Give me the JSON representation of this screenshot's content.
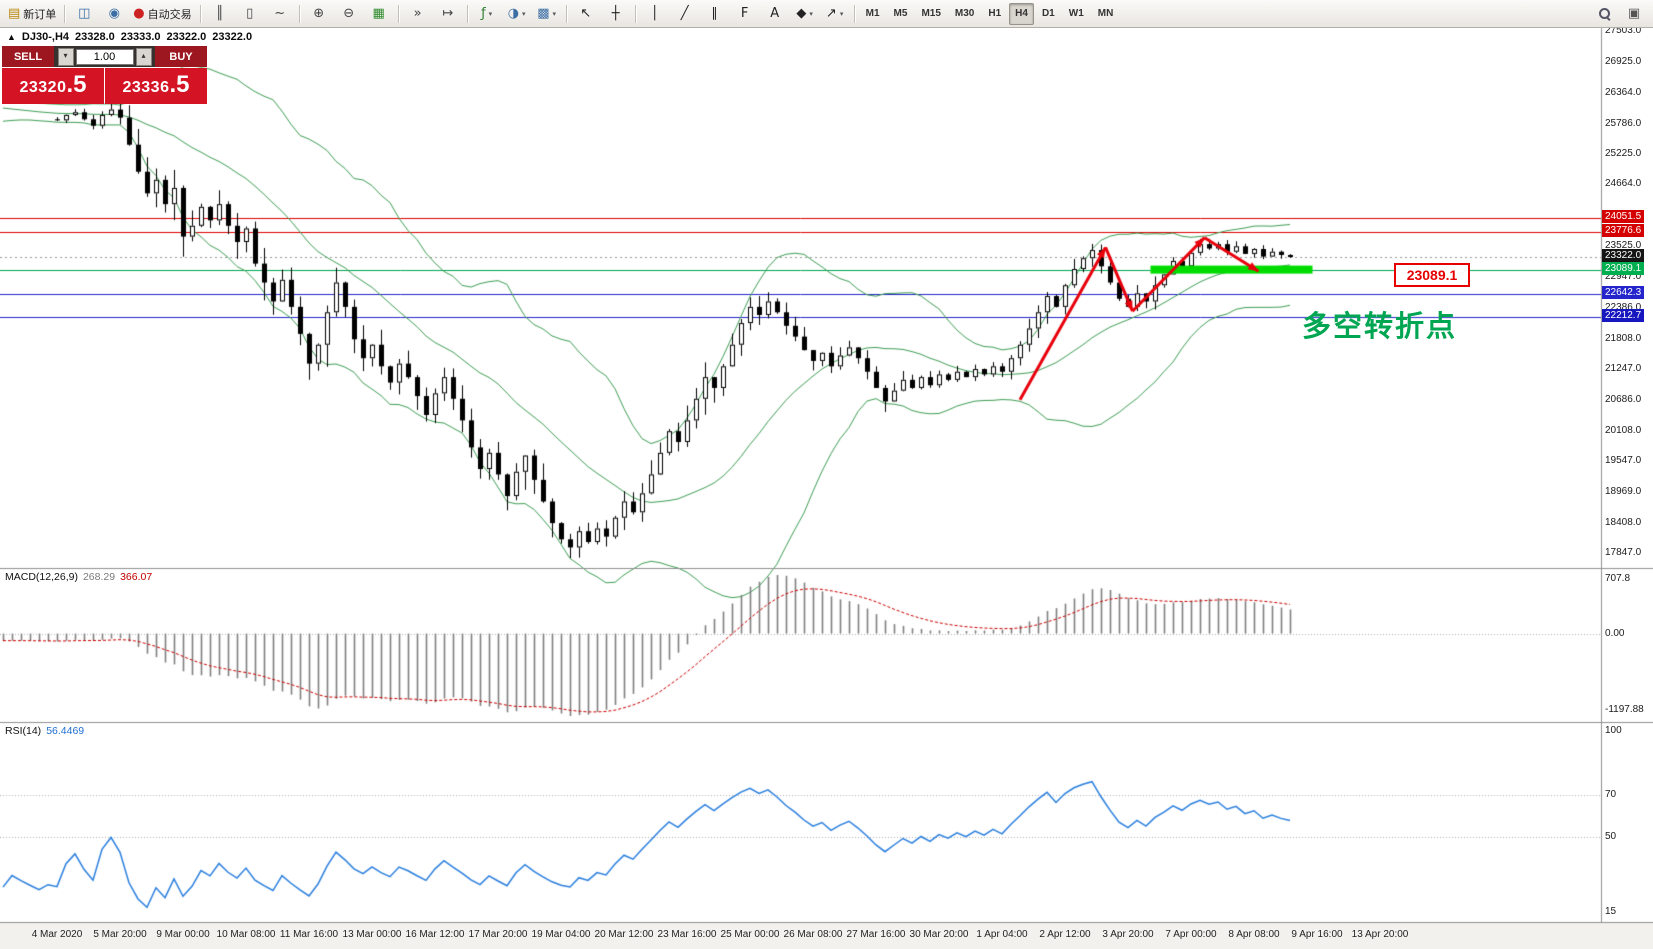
{
  "toolbar": {
    "caret_glyph": "▾",
    "active_timeframe": "H4",
    "timeframes": [
      "M1",
      "M5",
      "M15",
      "M30",
      "H1",
      "H4",
      "D1",
      "W1",
      "MN"
    ],
    "groups": [
      {
        "items": [
          {
            "name": "new-order",
            "glyph": "▤",
            "color": "#b8860b",
            "label": "新订单"
          }
        ]
      },
      {
        "items": [
          {
            "name": "charts-window",
            "glyph": "◫",
            "color": "#3a6ea5"
          },
          {
            "name": "market-watch",
            "glyph": "◉",
            "color": "#3a6ea5"
          },
          {
            "name": "auto-trading",
            "glyph": "●",
            "color": "#cc2222",
            "label": "自动交易"
          }
        ]
      },
      {
        "items": [
          {
            "name": "bar-chart",
            "glyph": "║",
            "color": "#444444"
          },
          {
            "name": "candlestick-chart",
            "glyph": "▯",
            "color": "#444444"
          },
          {
            "name": "line-chart",
            "glyph": "~",
            "color": "#444444"
          }
        ]
      },
      {
        "items": [
          {
            "name": "zoom-in",
            "glyph": "⊕",
            "color": "#444444"
          },
          {
            "name": "zoom-out",
            "glyph": "⊖",
            "color": "#444444"
          },
          {
            "name": "tile-windows",
            "glyph": "▦",
            "color": "#2e8b2e"
          }
        ]
      },
      {
        "items": [
          {
            "name": "auto-scroll",
            "glyph": "»",
            "color": "#444444"
          },
          {
            "name": "chart-shift",
            "glyph": "↦",
            "color": "#444444"
          }
        ]
      },
      {
        "items": [
          {
            "name": "indicators-list",
            "glyph": "ƒ",
            "color": "#2e7d32",
            "caret": true
          },
          {
            "name": "periods-list",
            "glyph": "◑",
            "color": "#3a6ea5",
            "caret": true
          },
          {
            "name": "templates",
            "glyph": "▩",
            "color": "#3a6ea5",
            "caret": true
          }
        ]
      },
      {
        "items": [
          {
            "name": "cursor",
            "glyph": "↖",
            "color": "#222222"
          },
          {
            "name": "crosshair",
            "glyph": "┼",
            "color": "#222222"
          }
        ]
      },
      {
        "items": [
          {
            "name": "vertical-line",
            "glyph": "│",
            "color": "#222222"
          },
          {
            "name": "trendline",
            "glyph": "╱",
            "color": "#222222"
          },
          {
            "name": "equidistant-channel",
            "glyph": "∥",
            "color": "#222222"
          },
          {
            "name": "fibonacci",
            "glyph": "F",
            "color": "#222222"
          },
          {
            "name": "text-label",
            "glyph": "A",
            "color": "#222222"
          },
          {
            "name": "shapes",
            "glyph": "◆",
            "color": "#222222",
            "caret": true
          },
          {
            "name": "arrows",
            "glyph": "↗",
            "color": "#222222",
            "caret": true
          }
        ]
      }
    ],
    "right_icons": [
      {
        "name": "search",
        "glyph": "css-magnifier"
      },
      {
        "name": "layouts",
        "glyph": "▣",
        "color": "#555555"
      }
    ]
  },
  "symbol_header": {
    "collapse_glyph": "▲",
    "symbol": "DJ30-,H4",
    "open": "23328.0",
    "high": "23333.0",
    "low": "23322.0",
    "close": "23322.0"
  },
  "trade_panel": {
    "sell_label": "SELL",
    "buy_label": "BUY",
    "volume": "1.00",
    "spin_down_glyph": "▾",
    "spin_up_glyph": "▴",
    "sell_main": "23320",
    "sell_frac": ".5",
    "buy_main": "23336",
    "buy_frac": ".5"
  },
  "annotations": {
    "price_callout": {
      "text": "23089.1",
      "color": "#e60000"
    },
    "cn_note": {
      "text": "多空转折点",
      "color": "#00a651"
    },
    "highlight_bar": {
      "from_index": 121.5,
      "to_index": 139.5,
      "price": 23089.1,
      "color": "#00dc00",
      "thickness": 8
    },
    "trend_arrows": {
      "color": "#e8000b",
      "segments": [
        [
          107,
          20680,
          116.5,
          23500
        ],
        [
          116.5,
          23500,
          119.5,
          22320
        ],
        [
          119.5,
          22320,
          127.5,
          23680
        ],
        [
          127.5,
          23680,
          133.5,
          23060
        ]
      ]
    }
  },
  "chart_data": {
    "type": "candlestick",
    "symbol": "DJ30-",
    "timeframe": "H4",
    "last_price": 23322.0,
    "colors": {
      "bull": "#ffffff",
      "bear": "#000000",
      "band": "#3f9e54",
      "macd_hist": "#808080",
      "macd_signal": "#cc0000",
      "rsi_line": "#2a7fde",
      "grid": "#b0b0b0"
    },
    "price_ticks": [
      27503.0,
      26925.0,
      26364.0,
      25786.0,
      25225.0,
      24664.0,
      24086.0,
      23525.0,
      22947.0,
      22386.0,
      21808.0,
      21247.0,
      20686.0,
      20108.0,
      19547.0,
      18969.0,
      18408.0,
      17847.0
    ],
    "x_labels": [
      "4 Mar 2020",
      "5 Mar 20:00",
      "9 Mar 00:00",
      "10 Mar 08:00",
      "11 Mar 16:00",
      "13 Mar 00:00",
      "16 Mar 12:00",
      "17 Mar 20:00",
      "19 Mar 04:00",
      "20 Mar 12:00",
      "23 Mar 16:00",
      "25 Mar 00:00",
      "26 Mar 08:00",
      "27 Mar 16:00",
      "30 Mar 20:00",
      "1 Apr 04:00",
      "2 Apr 12:00",
      "3 Apr 20:00",
      "7 Apr 00:00",
      "8 Apr 08:00",
      "9 Apr 16:00",
      "13 Apr 20:00"
    ],
    "levels": [
      {
        "price": 24051.5,
        "label": "24051.5",
        "color": "#e00000",
        "label_bg": "#d40000",
        "style": "solid"
      },
      {
        "price": 23776.6,
        "label": "23776.6",
        "color": "#e00000",
        "label_bg": "#d40000",
        "style": "solid"
      },
      {
        "price": 23322.0,
        "label": "23322.0",
        "color": "#9a9a9a",
        "label_bg": "#151515",
        "style": "dot"
      },
      {
        "price": 23089.1,
        "label": "23089.1",
        "color": "#00a651",
        "label_bg": "#00b050",
        "style": "solid"
      },
      {
        "price": 22642.3,
        "label": "22642.3",
        "color": "#2525cc",
        "label_bg": "#2525cc",
        "style": "solid"
      },
      {
        "price": 22212.7,
        "label": "22212.7",
        "color": "#2525cc",
        "label_bg": "#1717c0",
        "style": "solid"
      }
    ],
    "indicators": {
      "bollinger": {
        "period": 20,
        "deviation": 2
      },
      "macd": {
        "label": "MACD(12,26,9)",
        "main_value": "268.29",
        "signal_value": "366.07",
        "ticks": [
          "707.8",
          "0.00",
          "-1197.88"
        ]
      },
      "rsi": {
        "label": "RSI(14)",
        "value": "56.4469",
        "ticks": [
          100,
          70,
          50,
          15
        ],
        "levels": [
          70,
          50
        ]
      }
    },
    "pre_closes": [
      26400,
      26350,
      26300,
      26250,
      26200,
      26150,
      26100,
      26050,
      26000,
      25950,
      25950,
      26000,
      26050,
      26100,
      26150,
      26100,
      26050,
      26000,
      25950,
      25900,
      25950,
      26000,
      25950,
      25900,
      25850,
      25870
    ],
    "closes": [
      25850,
      25950,
      26000,
      25870,
      25750,
      25950,
      26050,
      25900,
      25400,
      24900,
      24500,
      24750,
      24300,
      24600,
      23700,
      23900,
      24250,
      24000,
      24300,
      23900,
      23600,
      23850,
      23200,
      22850,
      22500,
      22900,
      22400,
      21900,
      21350,
      21700,
      22300,
      22850,
      22400,
      21800,
      21450,
      21700,
      21300,
      21000,
      21350,
      21100,
      20750,
      20400,
      20800,
      21100,
      20700,
      20300,
      19800,
      19400,
      19700,
      19300,
      18900,
      19350,
      19650,
      19200,
      18800,
      18400,
      18100,
      17950,
      18250,
      18050,
      18300,
      18150,
      18500,
      18800,
      18600,
      18950,
      19300,
      19700,
      20100,
      19900,
      20300,
      20700,
      21100,
      20900,
      21300,
      21700,
      22100,
      22400,
      22250,
      22500,
      22300,
      22050,
      21850,
      21600,
      21400,
      21550,
      21300,
      21500,
      21650,
      21450,
      21200,
      20900,
      20650,
      20850,
      21050,
      20900,
      21100,
      20950,
      21150,
      21050,
      21200,
      21100,
      21250,
      21150,
      21300,
      21200,
      21450,
      21700,
      22000,
      22300,
      22600,
      22400,
      22800,
      23100,
      23300,
      23450,
      23150,
      22850,
      22550,
      22400,
      22650,
      22500,
      22800,
      23000,
      23250,
      23150,
      23400,
      23560,
      23480,
      23560,
      23420,
      23520,
      23380,
      23470,
      23330,
      23420,
      23360,
      23322
    ]
  }
}
